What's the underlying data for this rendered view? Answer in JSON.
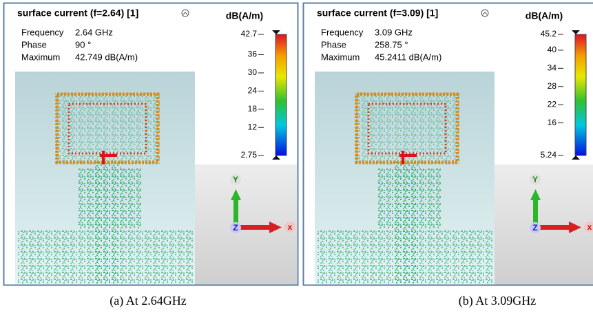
{
  "panels": [
    {
      "title": "surface current (f=2.64) [1]",
      "info": [
        {
          "label": "Frequency",
          "value": "2.64 GHz"
        },
        {
          "label": "Phase",
          "value": "90 °"
        },
        {
          "label": "Maximum",
          "value": "42.749 dB(A/m)"
        }
      ],
      "legend_title": "dB(A/m)",
      "colorbar_ticks": [
        42.7,
        36,
        30,
        24,
        18,
        12,
        2.75
      ],
      "axes": {
        "y": "Y",
        "z": "Z",
        "x": "x"
      },
      "caption": "(a)  At 2.64GHz"
    },
    {
      "title": "surface current (f=3.09) [1]",
      "info": [
        {
          "label": "Frequency",
          "value": "3.09 GHz"
        },
        {
          "label": "Phase",
          "value": "258.75 °"
        },
        {
          "label": "Maximum",
          "value": "45.2411 dB(A/m)"
        }
      ],
      "legend_title": "dB(A/m)",
      "colorbar_ticks": [
        45.2,
        40,
        34,
        28,
        22,
        16,
        5.24
      ],
      "axes": {
        "y": "Y",
        "z": "Z",
        "x": "x"
      },
      "caption": "(b) At 3.09GHz"
    }
  ]
}
